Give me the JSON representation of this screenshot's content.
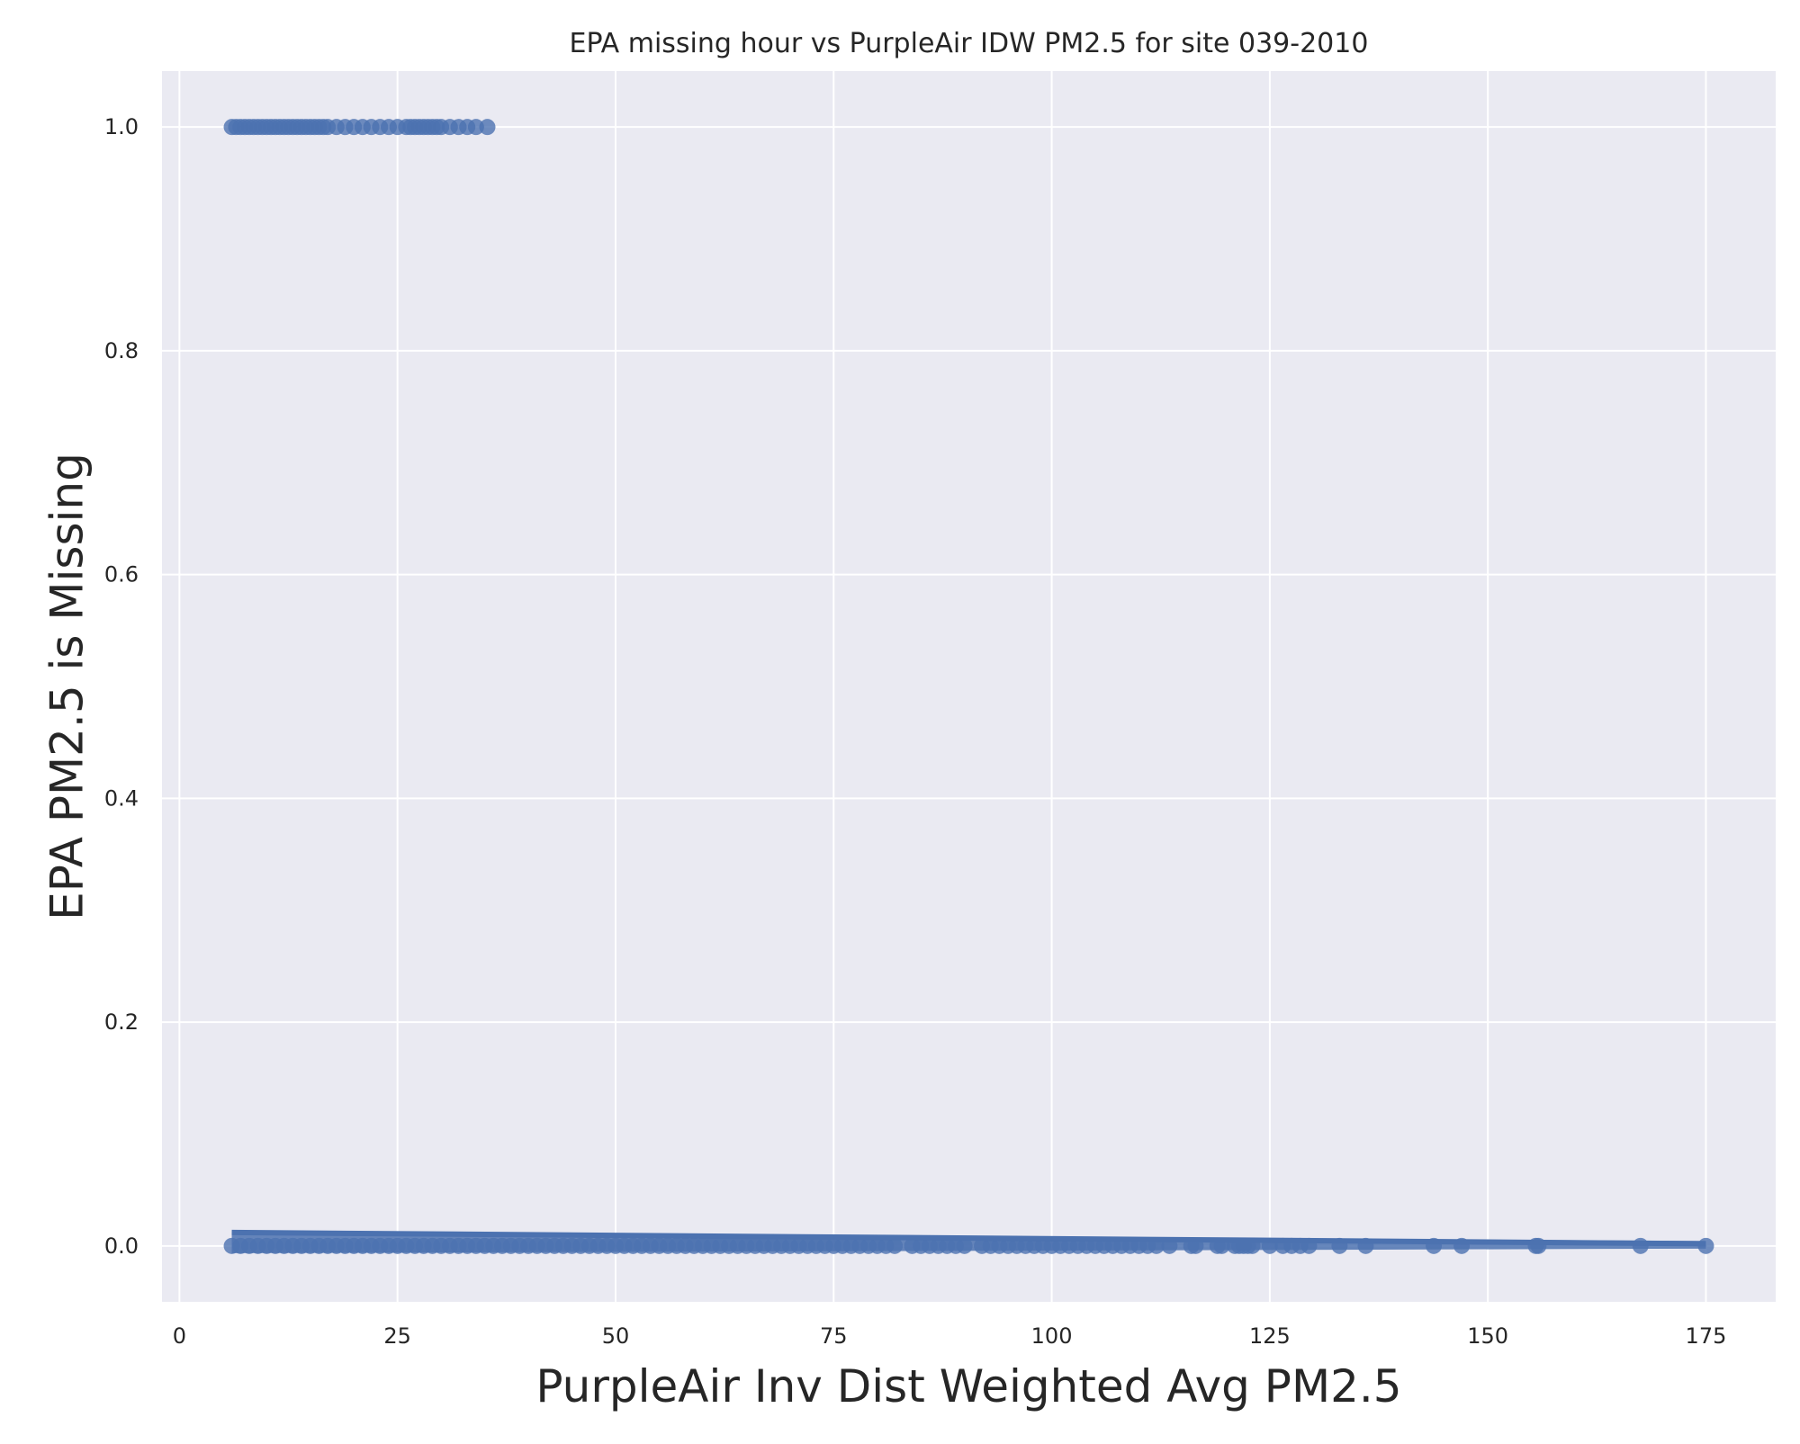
{
  "chart_data": {
    "type": "scatter",
    "title": "EPA missing hour vs PurpleAir IDW PM2.5 for site 039-2010",
    "xlabel": "PurpleAir Inv Dist Weighted Avg PM2.5",
    "ylabel": "EPA PM2.5 is Missing",
    "xlim": [
      -2,
      183
    ],
    "ylim": [
      -0.05,
      1.05
    ],
    "x_ticks": [
      0,
      25,
      50,
      75,
      100,
      125,
      150,
      175
    ],
    "x_tick_labels": [
      "0",
      "25",
      "50",
      "75",
      "100",
      "125",
      "150",
      "175"
    ],
    "y_ticks": [
      0.0,
      0.2,
      0.4,
      0.6,
      0.8,
      1.0
    ],
    "y_tick_labels": [
      "0.0",
      "0.2",
      "0.4",
      "0.6",
      "0.8",
      "1.0"
    ],
    "grid": true,
    "background_color": "#eaeaf2",
    "grid_color": "#ffffff",
    "point_color": "#4c72b0",
    "series": [
      {
        "points_missing": [
          [
            6.0,
            1
          ],
          [
            6.5,
            1
          ],
          [
            7.0,
            1
          ],
          [
            7.5,
            1
          ],
          [
            8.0,
            1
          ],
          [
            8.5,
            1
          ],
          [
            9.0,
            1
          ],
          [
            9.5,
            1
          ],
          [
            10.0,
            1
          ],
          [
            10.5,
            1
          ],
          [
            11.0,
            1
          ],
          [
            11.5,
            1
          ],
          [
            12.0,
            1
          ],
          [
            12.5,
            1
          ],
          [
            13.0,
            1
          ],
          [
            13.5,
            1
          ],
          [
            14.0,
            1
          ],
          [
            14.5,
            1
          ],
          [
            15.0,
            1
          ],
          [
            15.5,
            1
          ],
          [
            16.0,
            1
          ],
          [
            16.5,
            1
          ],
          [
            17.0,
            1
          ],
          [
            18.0,
            1
          ],
          [
            19.0,
            1
          ],
          [
            20.0,
            1
          ],
          [
            21.0,
            1
          ],
          [
            22.0,
            1
          ],
          [
            23.0,
            1
          ],
          [
            24.0,
            1
          ],
          [
            25.0,
            1
          ],
          [
            26.0,
            1
          ],
          [
            26.5,
            1
          ],
          [
            27.0,
            1
          ],
          [
            27.5,
            1
          ],
          [
            28.0,
            1
          ],
          [
            28.5,
            1
          ],
          [
            29.0,
            1
          ],
          [
            29.5,
            1
          ],
          [
            30.0,
            1
          ],
          [
            31.0,
            1
          ],
          [
            32.0,
            1
          ],
          [
            33.0,
            1
          ],
          [
            34.0,
            1
          ],
          [
            35.3,
            1
          ]
        ],
        "points_present": [
          [
            6,
            0
          ],
          [
            7,
            0
          ],
          [
            8,
            0
          ],
          [
            9,
            0
          ],
          [
            10,
            0
          ],
          [
            11,
            0
          ],
          [
            12,
            0
          ],
          [
            13,
            0
          ],
          [
            14,
            0
          ],
          [
            15,
            0
          ],
          [
            16,
            0
          ],
          [
            17,
            0
          ],
          [
            18,
            0
          ],
          [
            19,
            0
          ],
          [
            20,
            0
          ],
          [
            21,
            0
          ],
          [
            22,
            0
          ],
          [
            23,
            0
          ],
          [
            24,
            0
          ],
          [
            25,
            0
          ],
          [
            26,
            0
          ],
          [
            27,
            0
          ],
          [
            28,
            0
          ],
          [
            29,
            0
          ],
          [
            30,
            0
          ],
          [
            31,
            0
          ],
          [
            32,
            0
          ],
          [
            33,
            0
          ],
          [
            34,
            0
          ],
          [
            35,
            0
          ],
          [
            36,
            0
          ],
          [
            37,
            0
          ],
          [
            38,
            0
          ],
          [
            39,
            0
          ],
          [
            40,
            0
          ],
          [
            41,
            0
          ],
          [
            42,
            0
          ],
          [
            43,
            0
          ],
          [
            44,
            0
          ],
          [
            45,
            0
          ],
          [
            46,
            0
          ],
          [
            47,
            0
          ],
          [
            48,
            0
          ],
          [
            49,
            0
          ],
          [
            50,
            0
          ],
          [
            51,
            0
          ],
          [
            52,
            0
          ],
          [
            53,
            0
          ],
          [
            54,
            0
          ],
          [
            55,
            0
          ],
          [
            56,
            0
          ],
          [
            57,
            0
          ],
          [
            58,
            0
          ],
          [
            59,
            0
          ],
          [
            60,
            0
          ],
          [
            61,
            0
          ],
          [
            62,
            0
          ],
          [
            63,
            0
          ],
          [
            64,
            0
          ],
          [
            65,
            0
          ],
          [
            66,
            0
          ],
          [
            67,
            0
          ],
          [
            68,
            0
          ],
          [
            69,
            0
          ],
          [
            70,
            0
          ],
          [
            71,
            0
          ],
          [
            72,
            0
          ],
          [
            73,
            0
          ],
          [
            74,
            0
          ],
          [
            75,
            0
          ],
          [
            76,
            0
          ],
          [
            77,
            0
          ],
          [
            78,
            0
          ],
          [
            79,
            0
          ],
          [
            80,
            0
          ],
          [
            81,
            0
          ],
          [
            82,
            0
          ],
          [
            84,
            0
          ],
          [
            85,
            0
          ],
          [
            86,
            0
          ],
          [
            87,
            0
          ],
          [
            88,
            0
          ],
          [
            89,
            0
          ],
          [
            90,
            0
          ],
          [
            92,
            0
          ],
          [
            93,
            0
          ],
          [
            94,
            0
          ],
          [
            95,
            0
          ],
          [
            96,
            0
          ],
          [
            97,
            0
          ],
          [
            98,
            0
          ],
          [
            99,
            0
          ],
          [
            100,
            0
          ],
          [
            101,
            0
          ],
          [
            102,
            0
          ],
          [
            103,
            0
          ],
          [
            104,
            0
          ],
          [
            105,
            0
          ],
          [
            106,
            0
          ],
          [
            107,
            0
          ],
          [
            108,
            0
          ],
          [
            109,
            0
          ],
          [
            110,
            0
          ],
          [
            111,
            0
          ],
          [
            112,
            0
          ],
          [
            113.5,
            0
          ],
          [
            116,
            0
          ],
          [
            116.5,
            0
          ],
          [
            119,
            0
          ],
          [
            119.5,
            0
          ],
          [
            121,
            0
          ],
          [
            121.5,
            0
          ],
          [
            122,
            0
          ],
          [
            122.5,
            0
          ],
          [
            123,
            0
          ],
          [
            125,
            0
          ],
          [
            126.5,
            0
          ],
          [
            127.5,
            0
          ],
          [
            128.5,
            0
          ],
          [
            129.5,
            0
          ],
          [
            133,
            0
          ],
          [
            136,
            0
          ],
          [
            143.8,
            0
          ],
          [
            147,
            0
          ],
          [
            155.5,
            0
          ],
          [
            155.8,
            0
          ],
          [
            167.5,
            0
          ],
          [
            175,
            0
          ]
        ],
        "fit_line": [
          [
            6.0,
            0.012
          ],
          [
            175.0,
            0.002
          ]
        ]
      }
    ]
  }
}
